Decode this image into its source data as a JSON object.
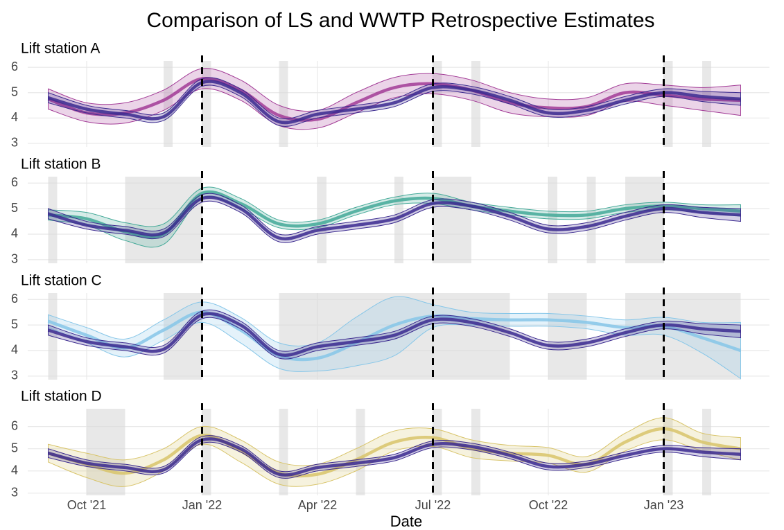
{
  "chart_data": {
    "type": "line",
    "title": "Comparison of LS and WWTP Retrospective Estimates",
    "xlabel": "Date",
    "x": [
      "2021-09",
      "2021-10",
      "2021-11",
      "2021-12",
      "2022-01",
      "2022-02",
      "2022-03",
      "2022-04",
      "2022-05",
      "2022-06",
      "2022-07",
      "2022-08",
      "2022-09",
      "2022-10",
      "2022-11",
      "2022-12",
      "2023-01",
      "2023-02",
      "2023-03"
    ],
    "xticks": [
      {
        "value": "2021-10",
        "label": "Oct '21"
      },
      {
        "value": "2022-01",
        "label": "Jan '22"
      },
      {
        "value": "2022-04",
        "label": "Apr '22"
      },
      {
        "value": "2022-07",
        "label": "Jul '22"
      },
      {
        "value": "2022-10",
        "label": "Oct '22"
      },
      {
        "value": "2023-01",
        "label": "Jan '23"
      }
    ],
    "vlines": [
      "2022-01",
      "2022-07",
      "2023-01"
    ],
    "grid": true,
    "panels": [
      {
        "title": "Lift station A",
        "ylim": [
          2.86,
          6.25
        ],
        "yticks": [
          3,
          4,
          5,
          6
        ],
        "shaded": [
          [
            "2021-12",
            "2021-12"
          ],
          [
            "2022-01",
            "2022-01"
          ],
          [
            "2022-03",
            "2022-03"
          ],
          [
            "2022-07",
            "2022-07"
          ],
          [
            "2022-08",
            "2022-08"
          ],
          [
            "2023-01",
            "2023-01"
          ],
          [
            "2023-02",
            "2023-02"
          ]
        ],
        "series": [
          {
            "color": "#a23b96",
            "values": [
              4.75,
              4.2,
              4.2,
              4.7,
              5.55,
              5.1,
              4.1,
              3.95,
              4.6,
              5.2,
              5.35,
              5.1,
              4.6,
              4.4,
              4.45,
              5.0,
              4.9,
              4.75,
              4.7
            ],
            "lower": [
              4.35,
              3.85,
              3.8,
              4.3,
              5.15,
              4.7,
              3.7,
              3.6,
              4.2,
              4.8,
              4.95,
              4.7,
              4.2,
              4.05,
              4.1,
              4.65,
              4.5,
              4.3,
              4.1
            ],
            "upper": [
              5.15,
              4.6,
              4.6,
              5.1,
              5.95,
              5.5,
              4.5,
              4.3,
              5.0,
              5.6,
              5.75,
              5.5,
              5.0,
              4.75,
              4.8,
              5.35,
              5.3,
              5.2,
              5.3
            ]
          },
          {
            "color": "#3b2a8f",
            "values": [
              4.8,
              4.35,
              4.15,
              4.05,
              5.4,
              5.0,
              3.85,
              4.15,
              4.35,
              4.6,
              5.2,
              5.1,
              4.7,
              4.2,
              4.3,
              4.7,
              5.0,
              4.85,
              4.75
            ],
            "lower": [
              4.6,
              4.2,
              4.0,
              3.9,
              5.25,
              4.85,
              3.7,
              4.0,
              4.2,
              4.45,
              5.05,
              4.95,
              4.55,
              4.05,
              4.15,
              4.55,
              4.85,
              4.65,
              4.5
            ],
            "upper": [
              5.0,
              4.5,
              4.3,
              4.2,
              5.55,
              5.15,
              4.0,
              4.3,
              4.5,
              4.75,
              5.35,
              5.25,
              4.85,
              4.35,
              4.45,
              4.85,
              5.15,
              5.05,
              5.0
            ]
          }
        ]
      },
      {
        "title": "Lift station B",
        "ylim": [
          2.86,
          6.25
        ],
        "yticks": [
          3,
          4,
          5,
          6
        ],
        "shaded": [
          [
            "2021-09",
            "2021-09"
          ],
          [
            "2021-11",
            "2022-01"
          ],
          [
            "2022-04",
            "2022-04"
          ],
          [
            "2022-06",
            "2022-06"
          ],
          [
            "2022-07",
            "2022-08"
          ],
          [
            "2022-10",
            "2022-10"
          ],
          [
            "2022-11",
            "2022-11"
          ],
          [
            "2022-12",
            "2023-01"
          ]
        ],
        "series": [
          {
            "color": "#43a998",
            "values": [
              4.75,
              4.6,
              4.1,
              4.0,
              5.6,
              5.2,
              4.4,
              4.4,
              4.9,
              5.3,
              5.4,
              5.1,
              4.9,
              4.75,
              4.75,
              5.0,
              5.1,
              5.0,
              4.9
            ],
            "lower": [
              4.55,
              4.35,
              3.75,
              3.6,
              5.4,
              5.0,
              4.25,
              4.25,
              4.75,
              5.15,
              5.2,
              4.95,
              4.75,
              4.6,
              4.6,
              4.85,
              4.95,
              4.85,
              4.7
            ],
            "upper": [
              4.95,
              4.85,
              4.45,
              4.4,
              5.8,
              5.4,
              4.55,
              4.55,
              5.05,
              5.45,
              5.6,
              5.25,
              5.05,
              4.9,
              4.9,
              5.15,
              5.25,
              5.15,
              5.15
            ]
          },
          {
            "color": "#3b2a8f",
            "values": [
              4.8,
              4.35,
              4.15,
              4.05,
              5.4,
              5.0,
              3.85,
              4.15,
              4.35,
              4.6,
              5.2,
              5.1,
              4.7,
              4.2,
              4.3,
              4.7,
              5.0,
              4.85,
              4.75
            ],
            "lower": [
              4.6,
              4.2,
              4.0,
              3.9,
              5.25,
              4.85,
              3.7,
              4.0,
              4.2,
              4.45,
              5.05,
              4.95,
              4.55,
              4.05,
              4.15,
              4.55,
              4.85,
              4.65,
              4.5
            ],
            "upper": [
              5.0,
              4.5,
              4.3,
              4.2,
              5.55,
              5.15,
              4.0,
              4.3,
              4.5,
              4.75,
              5.35,
              5.25,
              4.85,
              4.35,
              4.45,
              4.85,
              5.15,
              5.05,
              5.0
            ]
          }
        ]
      },
      {
        "title": "Lift station C",
        "ylim": [
          2.86,
          6.25
        ],
        "yticks": [
          3,
          4,
          5,
          6
        ],
        "shaded": [
          [
            "2021-09",
            "2021-09"
          ],
          [
            "2021-12",
            "2022-01"
          ],
          [
            "2022-03",
            "2022-04"
          ],
          [
            "2022-04",
            "2022-07"
          ],
          [
            "2022-07",
            "2022-08"
          ],
          [
            "2022-08",
            "2022-09"
          ],
          [
            "2022-10",
            "2022-11"
          ],
          [
            "2022-12",
            "2023-01"
          ],
          [
            "2023-01",
            "2023-03"
          ]
        ],
        "series": [
          {
            "color": "#86c6e8",
            "values": [
              5.15,
              4.6,
              4.1,
              4.8,
              5.5,
              4.8,
              3.8,
              3.7,
              4.3,
              5.0,
              5.35,
              5.25,
              5.2,
              5.2,
              5.1,
              4.9,
              4.95,
              4.5,
              4.0
            ],
            "lower": [
              4.9,
              4.3,
              3.75,
              4.4,
              5.1,
              4.3,
              3.3,
              3.2,
              3.4,
              3.8,
              4.9,
              5.0,
              4.95,
              4.95,
              4.85,
              4.6,
              4.6,
              3.9,
              2.9
            ],
            "upper": [
              5.4,
              4.9,
              4.45,
              5.2,
              5.9,
              5.3,
              4.3,
              4.3,
              5.3,
              6.1,
              5.8,
              5.5,
              5.45,
              5.45,
              5.35,
              5.2,
              5.3,
              5.1,
              5.1
            ]
          },
          {
            "color": "#3b2a8f",
            "values": [
              4.8,
              4.35,
              4.15,
              4.05,
              5.4,
              5.0,
              3.85,
              4.15,
              4.35,
              4.6,
              5.2,
              5.1,
              4.7,
              4.2,
              4.3,
              4.7,
              5.0,
              4.85,
              4.75
            ],
            "lower": [
              4.6,
              4.2,
              4.0,
              3.9,
              5.25,
              4.85,
              3.7,
              4.0,
              4.2,
              4.45,
              5.05,
              4.95,
              4.55,
              4.05,
              4.15,
              4.55,
              4.85,
              4.65,
              4.5
            ],
            "upper": [
              5.0,
              4.5,
              4.3,
              4.2,
              5.55,
              5.15,
              4.0,
              4.3,
              4.5,
              4.75,
              5.35,
              5.25,
              4.85,
              4.35,
              4.45,
              4.85,
              5.15,
              5.05,
              5.0
            ]
          }
        ]
      },
      {
        "title": "Lift station D",
        "ylim": [
          2.9,
          6.8
        ],
        "yticks": [
          3,
          4,
          5,
          6
        ],
        "shaded": [
          [
            "2021-10",
            "2021-11"
          ],
          [
            "2022-01",
            "2022-01"
          ],
          [
            "2022-03",
            "2022-03"
          ],
          [
            "2022-05",
            "2022-05"
          ],
          [
            "2022-07",
            "2022-07"
          ],
          [
            "2022-08",
            "2022-08"
          ],
          [
            "2023-01",
            "2023-01"
          ],
          [
            "2023-02",
            "2023-02"
          ]
        ],
        "series": [
          {
            "color": "#d8c46a",
            "values": [
              4.8,
              4.3,
              3.9,
              4.5,
              5.6,
              4.9,
              3.9,
              3.85,
              4.5,
              5.3,
              5.5,
              5.0,
              4.8,
              4.7,
              4.3,
              5.3,
              5.9,
              5.3,
              5.0
            ],
            "lower": [
              4.4,
              3.7,
              3.3,
              4.0,
              5.2,
              4.4,
              3.4,
              3.4,
              4.0,
              4.9,
              5.1,
              4.6,
              4.45,
              4.35,
              3.95,
              4.9,
              5.4,
              4.9,
              4.5
            ],
            "upper": [
              5.2,
              4.8,
              4.5,
              5.0,
              6.0,
              5.4,
              4.4,
              4.3,
              5.0,
              5.8,
              5.9,
              5.4,
              5.15,
              5.05,
              4.65,
              5.7,
              6.4,
              5.7,
              5.5
            ]
          },
          {
            "color": "#3b2a8f",
            "values": [
              4.8,
              4.35,
              4.15,
              4.05,
              5.4,
              5.0,
              3.85,
              4.15,
              4.35,
              4.6,
              5.2,
              5.1,
              4.7,
              4.2,
              4.3,
              4.7,
              5.0,
              4.85,
              4.75
            ],
            "lower": [
              4.6,
              4.2,
              4.0,
              3.9,
              5.25,
              4.85,
              3.7,
              4.0,
              4.2,
              4.45,
              5.05,
              4.95,
              4.55,
              4.05,
              4.15,
              4.55,
              4.85,
              4.65,
              4.5
            ],
            "upper": [
              5.0,
              4.5,
              4.3,
              4.2,
              5.55,
              5.15,
              4.0,
              4.3,
              4.5,
              4.75,
              5.35,
              5.25,
              4.85,
              4.35,
              4.45,
              4.85,
              5.15,
              5.05,
              5.0
            ]
          }
        ]
      }
    ]
  }
}
